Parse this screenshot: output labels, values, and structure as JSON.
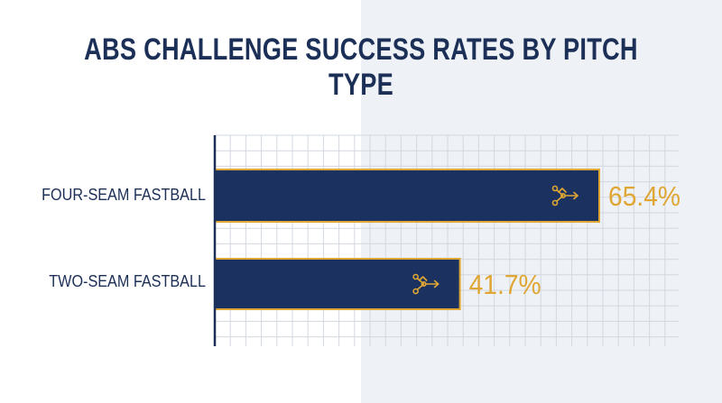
{
  "title": "ABS CHALLENGE SUCCESS RATES BY PITCH TYPE",
  "colors": {
    "bar_fill": "#1b3260",
    "accent": "#e0a634",
    "title": "#1b2f57",
    "grid": "#d3d8e0"
  },
  "icon": "pitch-trajectory-icon",
  "chart_data": {
    "type": "bar",
    "orientation": "horizontal",
    "title": "ABS CHALLENGE SUCCESS RATES BY PITCH TYPE",
    "categories": [
      "FOUR-SEAM FASTBALL",
      "TWO-SEAM FASTBALL"
    ],
    "values": [
      65.4,
      41.7
    ],
    "value_labels": [
      "65.4%",
      "41.7%"
    ],
    "unit": "%",
    "xlim": [
      0,
      100
    ],
    "grid": true
  }
}
